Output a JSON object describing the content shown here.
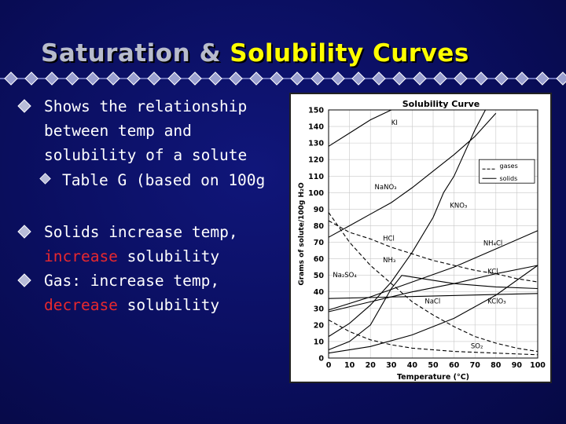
{
  "slide": {
    "title_part1": "Saturation & ",
    "title_part2": "Solubility Curves",
    "colors": {
      "background": "#0a0e58",
      "title_main": "#b8bccc",
      "title_accent": "#ffff00",
      "highlight": "#e8282e",
      "bullet": "#b8bcd8"
    },
    "bullets": [
      {
        "lines": [
          "Shows the relationship",
          "between temp and",
          "solubility of a solute"
        ]
      },
      {
        "sub": "Table G (based on 100g"
      },
      {
        "word": "Solids",
        "rest": " increase temp,",
        "line2_red": "increase",
        "line2_rest": " solubility"
      },
      {
        "line1": "Gas: increase temp,",
        "line2_red": "decrease",
        "line2_rest": " solubility"
      }
    ]
  },
  "chart_data": {
    "type": "line",
    "title": "Solubility Curve",
    "xlabel": "Temperature (°C)",
    "ylabel": "Grams of solute/100g H₂O",
    "xlim": [
      0,
      100
    ],
    "ylim": [
      0,
      150
    ],
    "xticks": [
      "0",
      "10",
      "20",
      "30",
      "40",
      "50",
      "60",
      "70",
      "80",
      "90",
      "100"
    ],
    "yticks": [
      "0",
      "10",
      "20",
      "30",
      "40",
      "50",
      "60",
      "70",
      "80",
      "90",
      "100",
      "110",
      "120",
      "130",
      "140",
      "150"
    ],
    "grid": true,
    "legend": {
      "items": [
        {
          "label": "gases",
          "style": "dashed"
        },
        {
          "label": "solids",
          "style": "solid"
        }
      ],
      "placement": "top-right"
    },
    "series": [
      {
        "name": "KI",
        "style": "solid",
        "label_text": "KI",
        "points": [
          [
            0,
            128
          ],
          [
            10,
            136
          ],
          [
            20,
            144
          ],
          [
            30,
            150
          ]
        ]
      },
      {
        "name": "NaNO3",
        "style": "solid",
        "label_text": "NaNO₃",
        "points": [
          [
            0,
            73
          ],
          [
            10,
            80
          ],
          [
            20,
            87
          ],
          [
            30,
            94
          ],
          [
            40,
            103
          ],
          [
            50,
            113
          ],
          [
            60,
            123
          ],
          [
            70,
            134
          ],
          [
            80,
            148
          ]
        ]
      },
      {
        "name": "KNO3",
        "style": "solid",
        "label_text": "KNO₃",
        "points": [
          [
            0,
            13
          ],
          [
            10,
            21
          ],
          [
            20,
            32
          ],
          [
            30,
            46
          ],
          [
            40,
            64
          ],
          [
            50,
            85
          ],
          [
            55,
            100
          ],
          [
            60,
            110
          ],
          [
            70,
            138
          ],
          [
            75,
            150
          ]
        ]
      },
      {
        "name": "NH4Cl",
        "style": "solid",
        "label_text": "NH₄Cl",
        "points": [
          [
            0,
            29
          ],
          [
            20,
            37
          ],
          [
            40,
            46
          ],
          [
            60,
            55
          ],
          [
            80,
            66
          ],
          [
            100,
            77
          ]
        ]
      },
      {
        "name": "KCl",
        "style": "solid",
        "label_text": "KCl",
        "points": [
          [
            0,
            28
          ],
          [
            20,
            34
          ],
          [
            40,
            40
          ],
          [
            60,
            45
          ],
          [
            80,
            51
          ],
          [
            100,
            56
          ]
        ]
      },
      {
        "name": "NaCl",
        "style": "solid",
        "label_text": "NaCl",
        "points": [
          [
            0,
            36
          ],
          [
            100,
            39
          ]
        ]
      },
      {
        "name": "KClO3",
        "style": "solid",
        "label_text": "KClO₃",
        "points": [
          [
            0,
            3
          ],
          [
            20,
            7
          ],
          [
            40,
            14
          ],
          [
            60,
            24
          ],
          [
            80,
            38
          ],
          [
            100,
            56
          ]
        ]
      },
      {
        "name": "Na2SO4",
        "style": "solid",
        "label_text": "Na₂SO₄",
        "points": [
          [
            0,
            5
          ],
          [
            10,
            10
          ],
          [
            20,
            20
          ],
          [
            30,
            42
          ],
          [
            35,
            50
          ],
          [
            40,
            49
          ],
          [
            60,
            45
          ],
          [
            80,
            43
          ],
          [
            100,
            42
          ]
        ]
      },
      {
        "name": "HCl",
        "style": "dashed",
        "label_text": "HCl",
        "points": [
          [
            0,
            83
          ],
          [
            10,
            76
          ],
          [
            20,
            72
          ],
          [
            30,
            67
          ],
          [
            40,
            63
          ],
          [
            50,
            59
          ],
          [
            60,
            56
          ],
          [
            70,
            53
          ],
          [
            80,
            51
          ],
          [
            90,
            48
          ],
          [
            100,
            46
          ]
        ]
      },
      {
        "name": "NH3",
        "style": "dashed",
        "label_text": "NH₃",
        "points": [
          [
            0,
            88
          ],
          [
            10,
            70
          ],
          [
            20,
            56
          ],
          [
            30,
            45
          ],
          [
            40,
            34
          ],
          [
            50,
            26
          ],
          [
            60,
            19
          ],
          [
            70,
            13
          ],
          [
            80,
            9
          ],
          [
            90,
            6
          ],
          [
            100,
            4
          ]
        ]
      },
      {
        "name": "SO2",
        "style": "dashed",
        "label_text": "SO₂",
        "points": [
          [
            0,
            23
          ],
          [
            10,
            16
          ],
          [
            20,
            11
          ],
          [
            30,
            8
          ],
          [
            40,
            6
          ],
          [
            60,
            4
          ],
          [
            80,
            3
          ],
          [
            100,
            2
          ]
        ]
      }
    ]
  }
}
